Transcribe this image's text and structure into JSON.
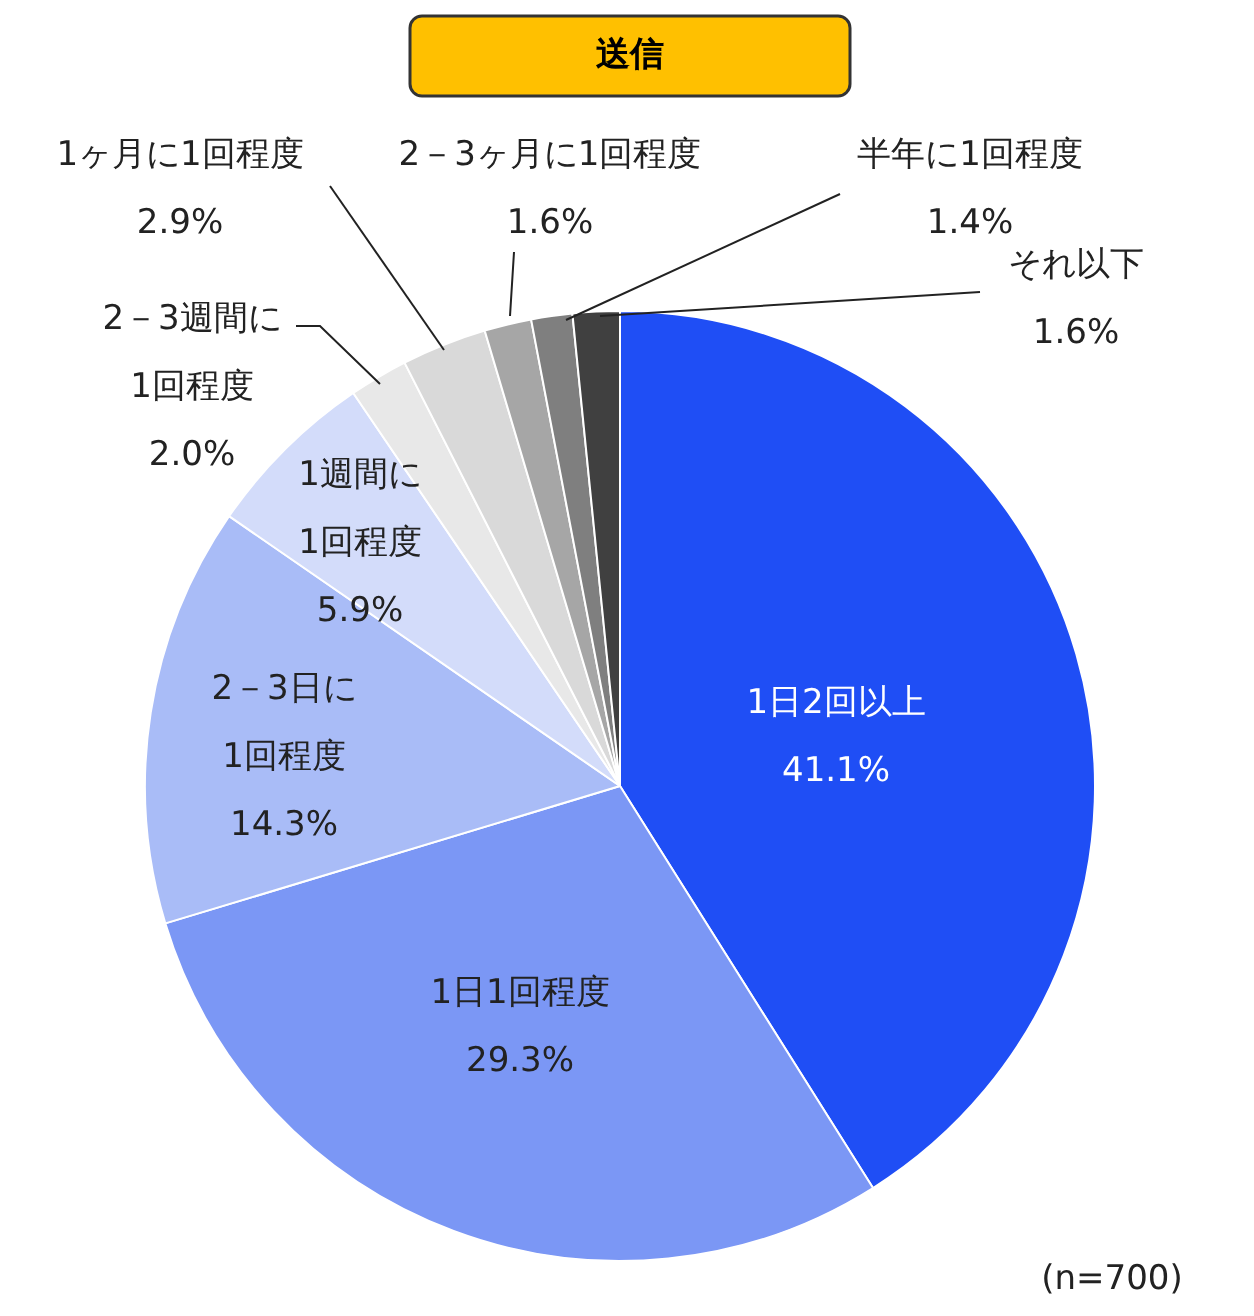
{
  "chart_data": {
    "type": "pie",
    "title": "送信",
    "annotations": [
      "(n=700)"
    ],
    "categories": [
      "1日2回以上",
      "1日1回程度",
      "2－3日に1回程度",
      "1週間に1回程度",
      "2－3週間に1回程度",
      "1ヶ月に1回程度",
      "2－3ヶ月に1回程度",
      "半年に1回程度",
      "それ以下"
    ],
    "values": [
      41.1,
      29.3,
      14.3,
      5.9,
      2.0,
      2.9,
      1.6,
      1.4,
      1.6
    ],
    "value_labels": [
      "41.1%",
      "29.3%",
      "14.3%",
      "5.9%",
      "2.0%",
      "2.9%",
      "1.6%",
      "1.4%",
      "1.6%"
    ],
    "colors": [
      "#1f4ef5",
      "#7b97f5",
      "#a9bcf7",
      "#d3dcfa",
      "#e8e8e8",
      "#d9d9d9",
      "#a6a6a6",
      "#7f7f7f",
      "#404040"
    ],
    "legend": false
  }
}
